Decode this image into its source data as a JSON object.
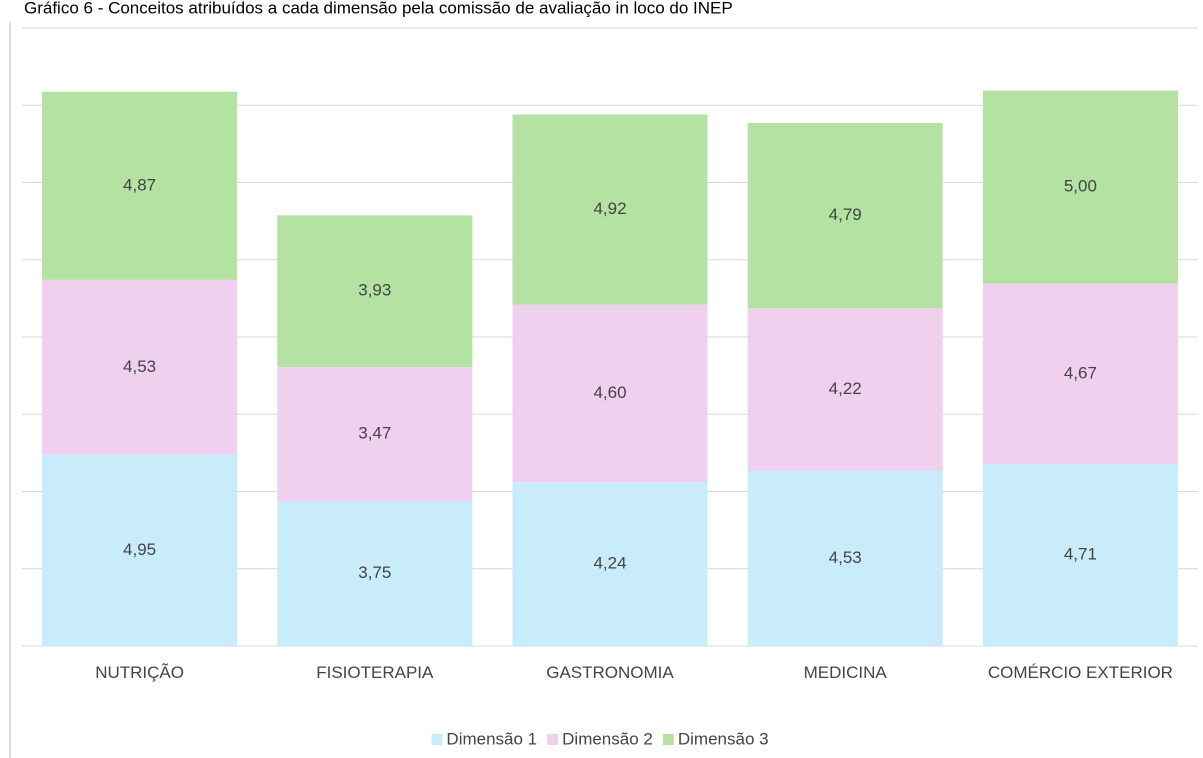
{
  "chart_data": {
    "type": "stacked_bar",
    "title": "Gráfico 6 - Conceitos atribuídos a cada dimensão pela comissão de avaliação in loco do INEP",
    "categories": [
      "NUTRIÇÃO",
      "FISIOTERAPIA",
      "GASTRONOMIA",
      "MEDICINA",
      "COMÉRCIO EXTERIOR"
    ],
    "series": [
      {
        "name": "Dimensão 1",
        "color": "#c8ecf9",
        "values": [
          4.95,
          3.75,
          4.24,
          4.53,
          4.71
        ],
        "value_labels": [
          "4,95",
          "3,75",
          "4,24",
          "4,53",
          "4,71"
        ]
      },
      {
        "name": "Dimensão 2",
        "color": "#f0d0ef",
        "values": [
          4.53,
          3.47,
          4.6,
          4.22,
          4.67
        ],
        "value_labels": [
          "4,53",
          "3,47",
          "4,60",
          "4,22",
          "4,67"
        ]
      },
      {
        "name": "Dimensão 3",
        "color": "#b3e2a3",
        "values": [
          4.87,
          3.93,
          4.92,
          4.79,
          5.0
        ],
        "value_labels": [
          "4,87",
          "3,93",
          "4,92",
          "4,79",
          "5,00"
        ]
      }
    ],
    "ylim": [
      0,
      16
    ],
    "yticks": [
      0,
      2,
      4,
      6,
      8,
      10,
      12,
      14,
      16
    ],
    "grid": true,
    "legend": "bottom"
  }
}
